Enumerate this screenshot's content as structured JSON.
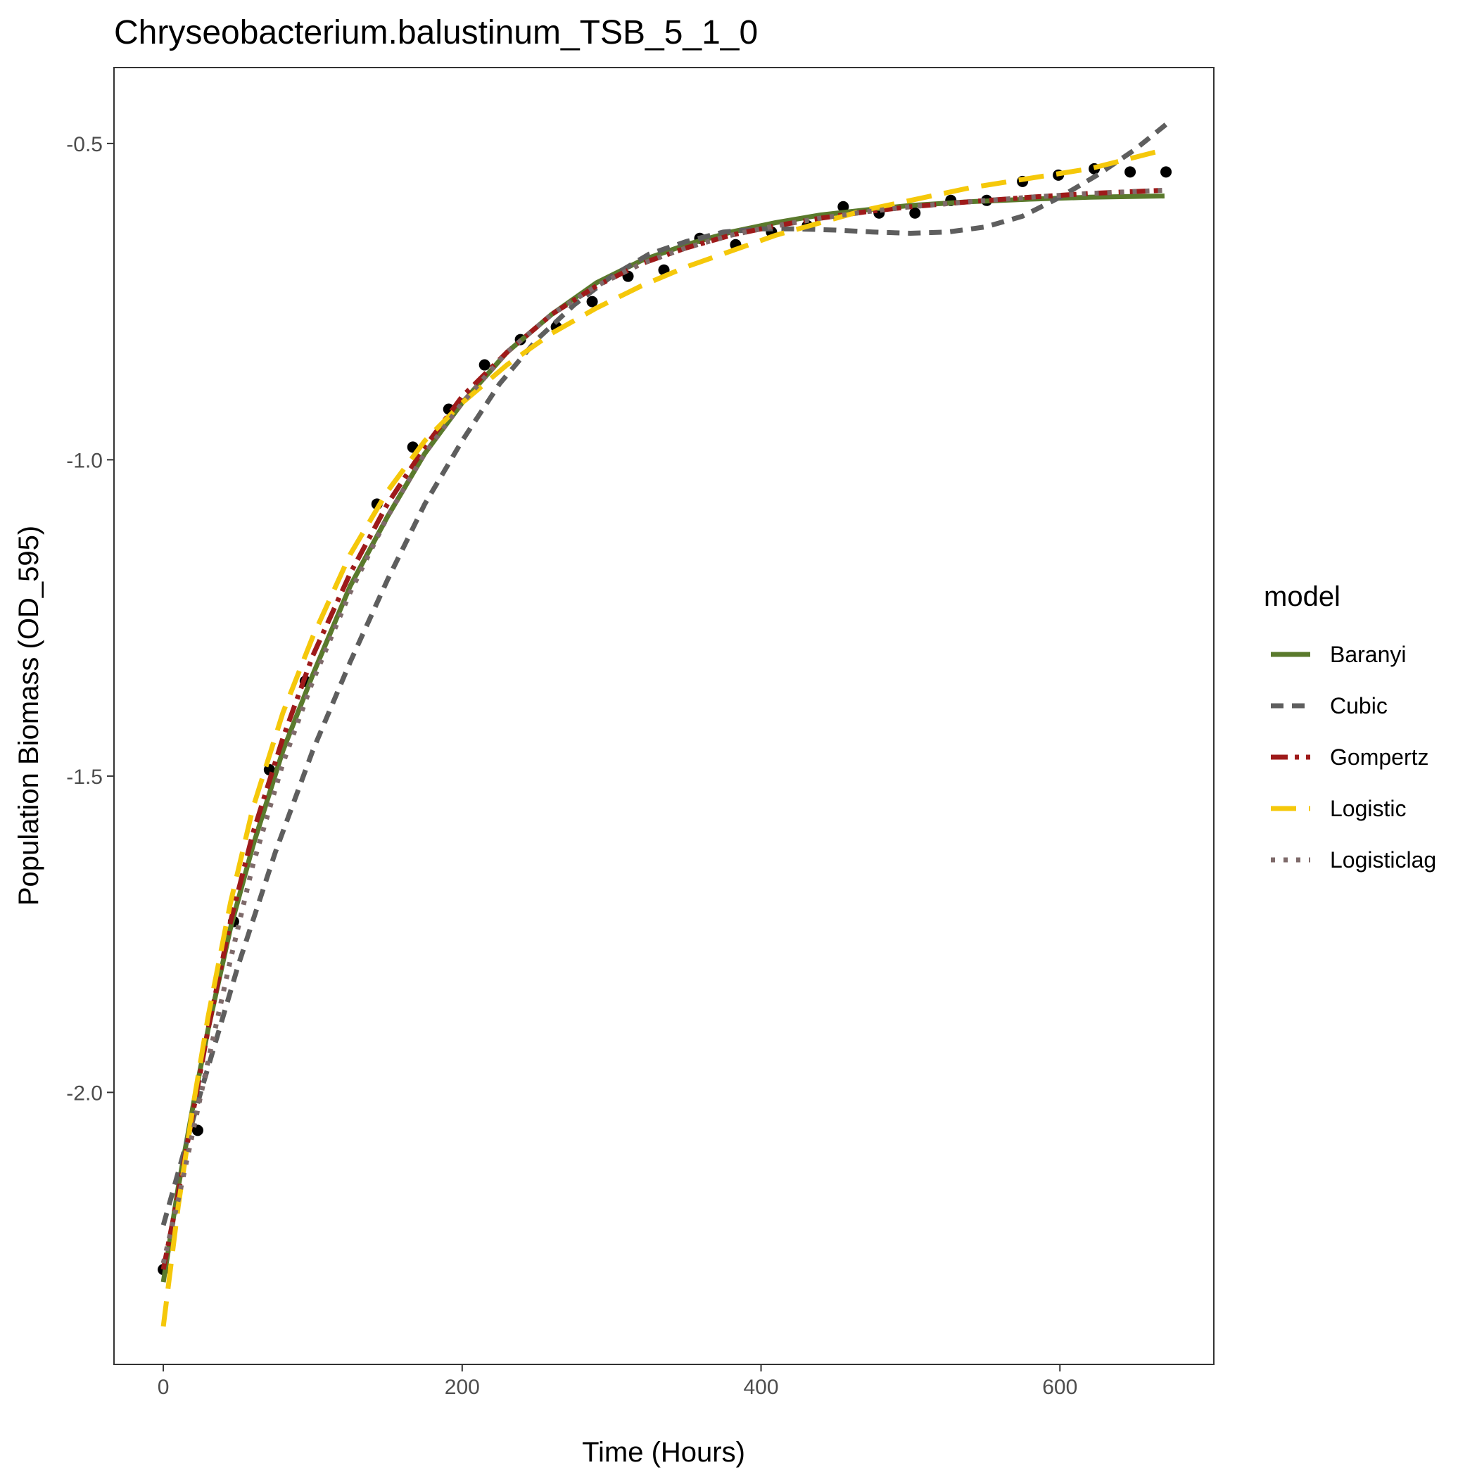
{
  "chart_data": {
    "type": "scatter",
    "title": "Chryseobacterium.balustinum_TSB_5_1_0",
    "xlabel": "Time (Hours)",
    "ylabel": "Population Biomass (OD_595)",
    "xlim": [
      -33,
      703
    ],
    "ylim": [
      -2.43,
      -0.38
    ],
    "xticks": [
      0,
      200,
      400,
      600
    ],
    "xtick_labels": [
      "0",
      "200",
      "400",
      "600"
    ],
    "yticks": [
      -2.0,
      -1.5,
      -1.0,
      -0.5
    ],
    "ytick_labels": [
      "-2.0",
      "-1.5",
      "-1.0",
      "-0.5"
    ],
    "grid": false,
    "legend_position": "right",
    "legend_title": "model",
    "observations": {
      "x": [
        0,
        23,
        47,
        71,
        95,
        143,
        167,
        191,
        215,
        239,
        263,
        287,
        311,
        335,
        359,
        383,
        407,
        431,
        455,
        479,
        503,
        527,
        551,
        575,
        599,
        623,
        647,
        671
      ],
      "y": [
        -2.28,
        -2.06,
        -1.73,
        -1.49,
        -1.35,
        -1.07,
        -0.98,
        -0.92,
        -0.85,
        -0.81,
        -0.79,
        -0.75,
        -0.71,
        -0.7,
        -0.65,
        -0.66,
        -0.64,
        -0.63,
        -0.6,
        -0.61,
        -0.61,
        -0.59,
        -0.59,
        -0.56,
        -0.55,
        -0.54,
        -0.545,
        -0.545
      ]
    },
    "series": [
      {
        "name": "Baranyi",
        "color": "#5a7a2c",
        "dash": "solid",
        "x": [
          0,
          10,
          20,
          30,
          45,
          60,
          80,
          100,
          125,
          150,
          175,
          200,
          230,
          260,
          290,
          320,
          350,
          380,
          410,
          440,
          470,
          500,
          540,
          580,
          620,
          670
        ],
        "y": [
          -2.3,
          -2.15,
          -2.02,
          -1.9,
          -1.74,
          -1.61,
          -1.46,
          -1.34,
          -1.2,
          -1.09,
          -0.99,
          -0.91,
          -0.83,
          -0.77,
          -0.72,
          -0.685,
          -0.66,
          -0.64,
          -0.625,
          -0.613,
          -0.605,
          -0.598,
          -0.592,
          -0.588,
          -0.585,
          -0.583
        ]
      },
      {
        "name": "Cubic",
        "color": "#5e5e5e",
        "dash": "dashed",
        "x": [
          0,
          25,
          50,
          75,
          100,
          125,
          150,
          175,
          200,
          225,
          250,
          275,
          300,
          325,
          350,
          375,
          400,
          425,
          450,
          475,
          500,
          525,
          550,
          575,
          600,
          625,
          650,
          671
        ],
        "y": [
          -2.21,
          -2.0,
          -1.8,
          -1.62,
          -1.46,
          -1.32,
          -1.19,
          -1.07,
          -0.97,
          -0.88,
          -0.81,
          -0.755,
          -0.71,
          -0.675,
          -0.655,
          -0.64,
          -0.635,
          -0.635,
          -0.637,
          -0.64,
          -0.642,
          -0.64,
          -0.632,
          -0.615,
          -0.585,
          -0.55,
          -0.51,
          -0.47
        ]
      },
      {
        "name": "Gompertz",
        "color": "#9e1a1a",
        "dash": "dashdot",
        "x": [
          0,
          10,
          20,
          30,
          45,
          60,
          80,
          100,
          125,
          150,
          175,
          200,
          230,
          260,
          290,
          320,
          350,
          380,
          410,
          440,
          470,
          500,
          540,
          580,
          620,
          670
        ],
        "y": [
          -2.28,
          -2.16,
          -2.03,
          -1.9,
          -1.73,
          -1.59,
          -1.44,
          -1.31,
          -1.18,
          -1.07,
          -0.98,
          -0.9,
          -0.83,
          -0.77,
          -0.725,
          -0.69,
          -0.665,
          -0.645,
          -0.63,
          -0.618,
          -0.608,
          -0.6,
          -0.592,
          -0.585,
          -0.579,
          -0.574
        ]
      },
      {
        "name": "Logistic",
        "color": "#f5c80a",
        "dash": "longdash",
        "x": [
          0,
          10,
          20,
          30,
          45,
          60,
          80,
          100,
          125,
          150,
          175,
          200,
          230,
          260,
          290,
          320,
          350,
          380,
          410,
          440,
          470,
          500,
          540,
          580,
          620,
          670
        ],
        "y": [
          -2.37,
          -2.18,
          -2.02,
          -1.88,
          -1.7,
          -1.55,
          -1.4,
          -1.28,
          -1.15,
          -1.05,
          -0.97,
          -0.91,
          -0.85,
          -0.8,
          -0.76,
          -0.725,
          -0.695,
          -0.67,
          -0.645,
          -0.625,
          -0.605,
          -0.59,
          -0.57,
          -0.555,
          -0.54,
          -0.51
        ]
      },
      {
        "name": "Logisticlag",
        "color": "#7e6a6a",
        "dash": "dotted",
        "x": [
          0,
          10,
          20,
          30,
          45,
          60,
          80,
          100,
          125,
          150,
          175,
          200,
          230,
          260,
          290,
          320,
          350,
          380,
          410,
          440,
          470,
          500,
          540,
          580,
          620,
          670
        ],
        "y": [
          -2.27,
          -2.17,
          -2.06,
          -1.95,
          -1.79,
          -1.64,
          -1.48,
          -1.35,
          -1.21,
          -1.09,
          -0.99,
          -0.91,
          -0.83,
          -0.77,
          -0.725,
          -0.69,
          -0.665,
          -0.645,
          -0.63,
          -0.618,
          -0.608,
          -0.6,
          -0.592,
          -0.585,
          -0.579,
          -0.574
        ]
      }
    ]
  }
}
